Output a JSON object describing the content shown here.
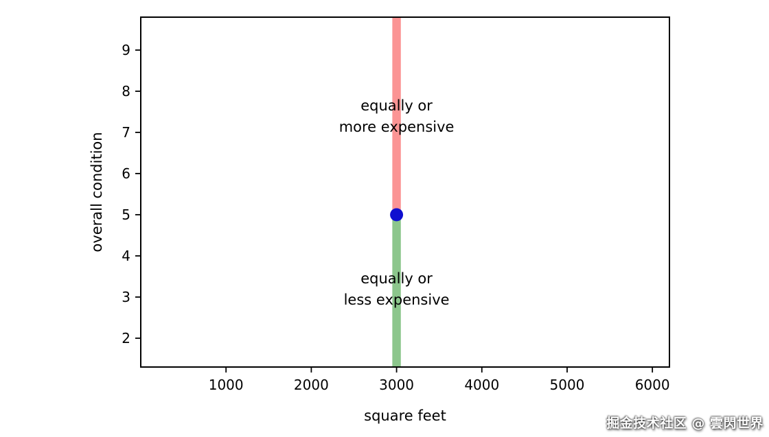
{
  "watermark": "掘金技术社区 @ 雲閃世界",
  "colors": {
    "background": "#ffffff",
    "axis": "#000000",
    "point": "#0f0fd0",
    "band_upper": "#fb9494",
    "band_lower": "#8cc68c"
  },
  "chart_data": {
    "type": "scatter",
    "title": "",
    "xlabel": "square feet",
    "ylabel": "overall condition",
    "xlim": [
      0,
      6200
    ],
    "ylim": [
      1.3,
      9.8
    ],
    "xticks": [
      1000,
      2000,
      3000,
      4000,
      5000,
      6000
    ],
    "yticks": [
      2,
      3,
      4,
      5,
      6,
      7,
      8,
      9
    ],
    "grid": false,
    "legend": null,
    "point": {
      "x": 3000,
      "y": 5
    },
    "bands": [
      {
        "name": "equally-or-more-expensive",
        "x_from": 2950,
        "x_to": 3050,
        "y_from": 5,
        "y_to": 9.8,
        "color": "#fb9494"
      },
      {
        "name": "equally-or-less-expensive",
        "x_from": 2950,
        "x_to": 3050,
        "y_from": 1.3,
        "y_to": 5,
        "color": "#8cc68c"
      }
    ],
    "annotations": [
      {
        "name": "upper-annotation",
        "lines": [
          "equally or",
          "more expensive"
        ],
        "x": 3000,
        "y": 7.4
      },
      {
        "name": "lower-annotation",
        "lines": [
          "equally or",
          "less expensive"
        ],
        "x": 3000,
        "y": 3.2
      }
    ]
  }
}
